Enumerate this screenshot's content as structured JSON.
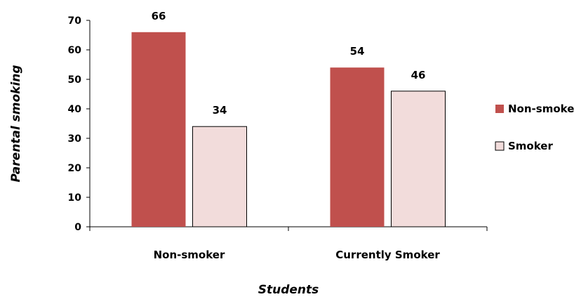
{
  "chart_data": {
    "type": "bar",
    "title": "",
    "xlabel": "Students",
    "ylabel": "Parental smoking",
    "categories": [
      "Non-smoker",
      "Currently Smoker"
    ],
    "series": [
      {
        "name": "Non-smoker",
        "values": [
          66,
          34
        ],
        "color": "#c0504d"
      },
      {
        "name": "Smoker",
        "values": [
          54,
          46
        ],
        "color": "#f2dcdb"
      }
    ],
    "data_label_groups": [
      {
        "category": "Non-smoker",
        "values": [
          66,
          34
        ]
      },
      {
        "category": "Currently Smoker",
        "values": [
          54,
          46
        ]
      }
    ],
    "ylim": [
      0,
      70
    ],
    "yticks": [
      "0",
      "10",
      "20",
      "30",
      "40",
      "50",
      "60",
      "70"
    ],
    "grid": false,
    "legend_position": "right"
  }
}
